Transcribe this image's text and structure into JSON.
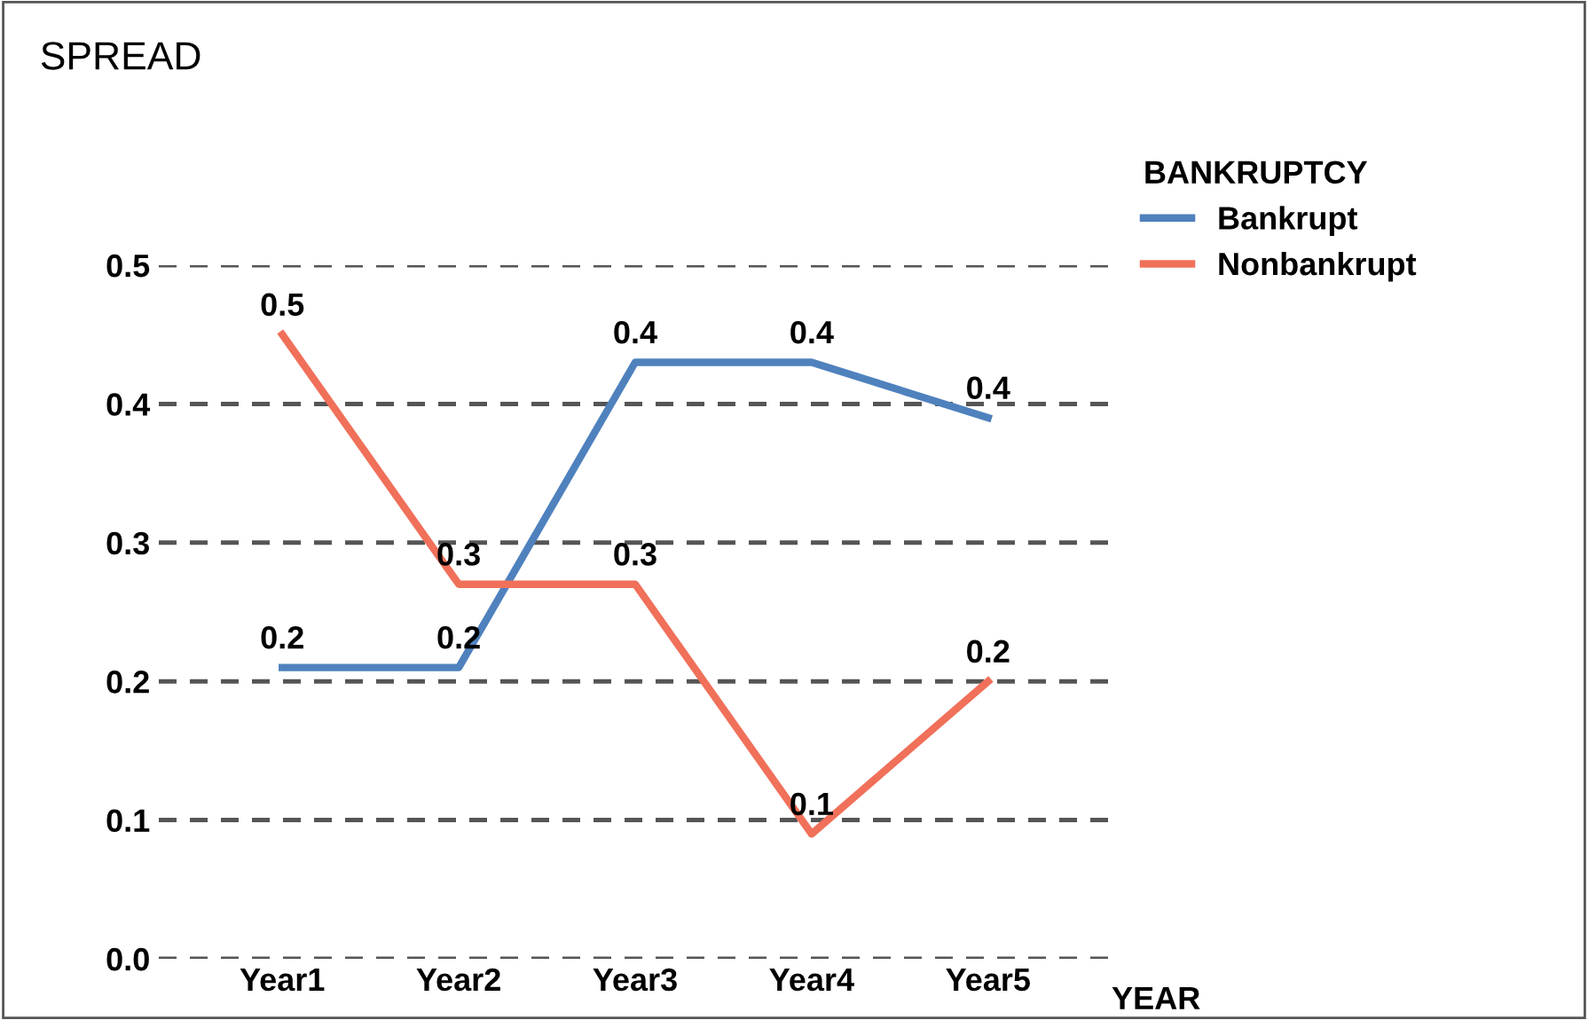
{
  "chart_data": {
    "type": "line",
    "title": "SPREAD",
    "xlabel": "YEAR",
    "legend_title": "BANKRUPTCY",
    "categories": [
      "Year1",
      "Year2",
      "Year3",
      "Year4",
      "Year5"
    ],
    "series": [
      {
        "name": "Bankrupt",
        "color": "#4f81bd",
        "values": [
          0.21,
          0.21,
          0.43,
          0.43,
          0.39
        ],
        "value_labels": [
          "0.2",
          "0.2",
          "0.4",
          "0.4",
          "0.4"
        ]
      },
      {
        "name": "Nonbankrupt",
        "color": "#f0705a",
        "values": [
          0.45,
          0.27,
          0.27,
          0.09,
          0.2
        ],
        "value_labels": [
          "0.5",
          "0.3",
          "0.3",
          "0.1",
          "0.2"
        ]
      }
    ],
    "ylim": [
      0,
      0.5
    ],
    "yticks": [
      {
        "value": 0,
        "label": "0.0"
      },
      0.1,
      0.2,
      0.3,
      0.4,
      0.5
    ],
    "grid": "y",
    "legend": "top right",
    "marker": "none",
    "line_style": "solid"
  }
}
